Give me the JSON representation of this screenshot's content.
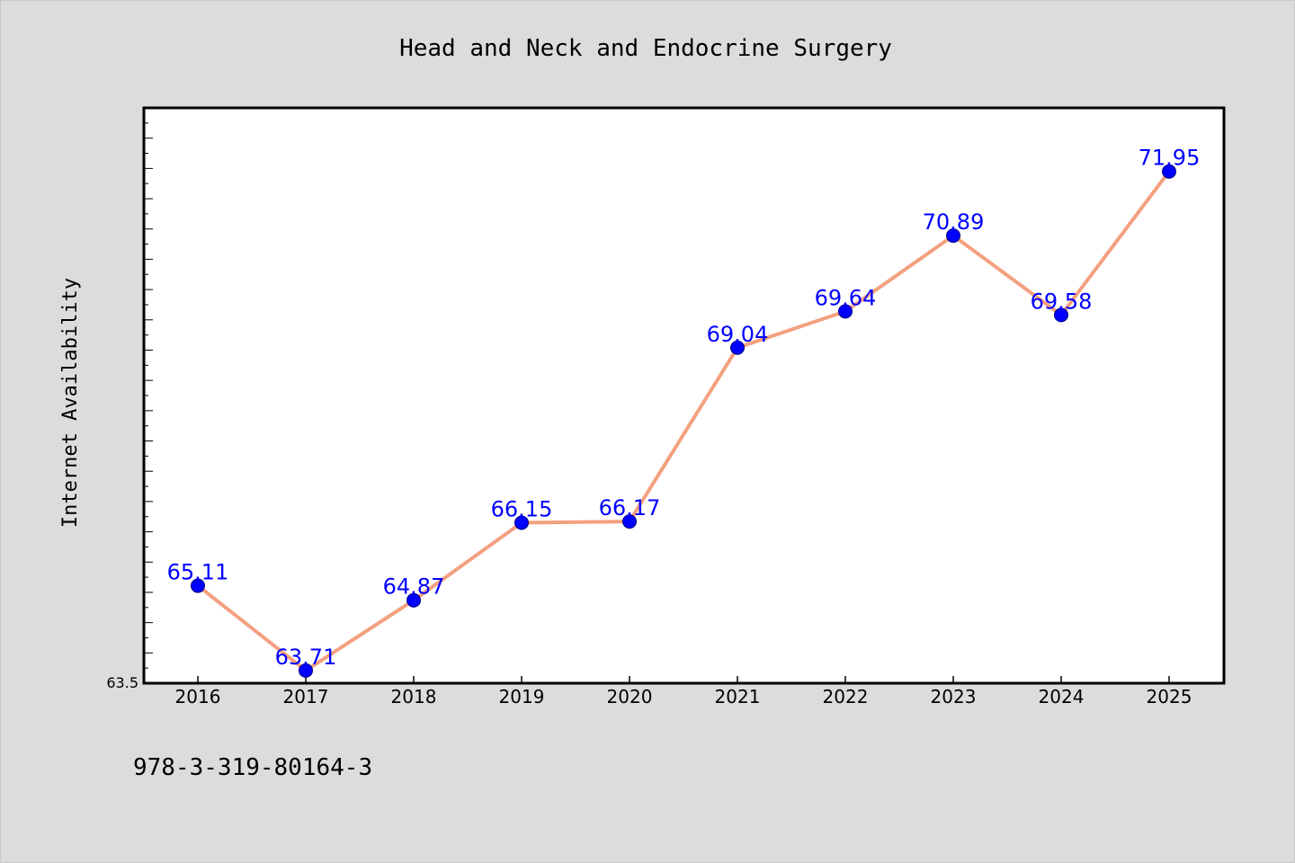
{
  "chart_data": {
    "type": "line",
    "title": "Head and Neck and Endocrine Surgery",
    "xlabel": "",
    "ylabel": "Internet Availability",
    "categories": [
      "2016",
      "2017",
      "2018",
      "2019",
      "2020",
      "2021",
      "2022",
      "2023",
      "2024",
      "2025"
    ],
    "series": [
      {
        "values": [
          65.11,
          63.71,
          64.87,
          66.15,
          66.17,
          69.04,
          69.64,
          70.89,
          69.58,
          71.95
        ],
        "data_labels": [
          "65.11",
          "63.71",
          "64.87",
          "66.15",
          "66.17",
          "69.04",
          "69.64",
          "70.89",
          "69.58",
          "71.95"
        ]
      }
    ],
    "ylim": [
      63.5,
      73.0
    ],
    "y_tick_labels": [
      "63.5"
    ],
    "grid": false,
    "legend": "none",
    "line_color": "#f4a07f",
    "marker_color": "#0000ff",
    "label_color": "#0000ff",
    "background_color": "#dcdcdc",
    "plot_background": "#ffffff"
  },
  "footnote": "978-3-319-80164-3"
}
